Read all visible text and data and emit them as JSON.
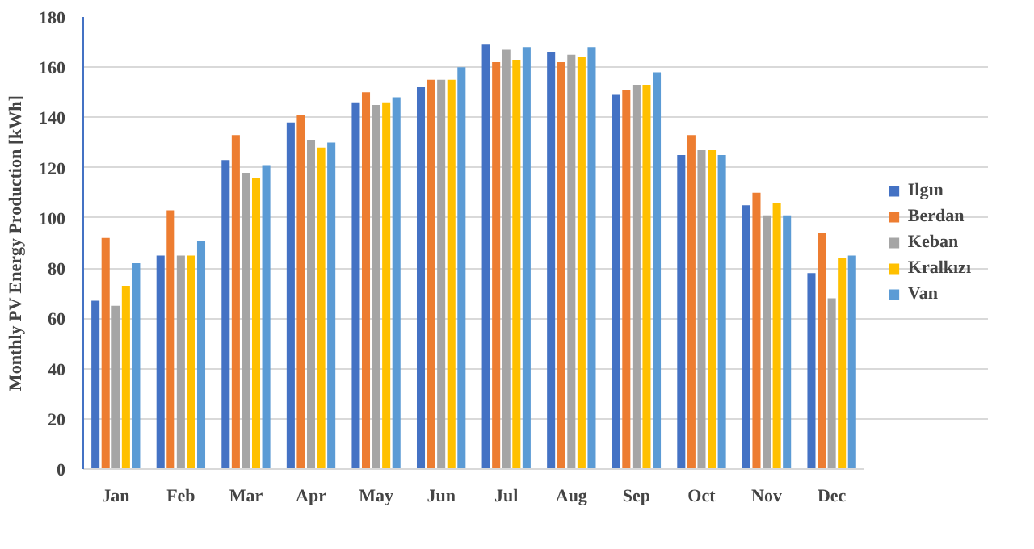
{
  "chart_data": {
    "type": "bar",
    "ylabel": "Monthly PV Energy Production [kWh]",
    "categories": [
      "Jan",
      "Feb",
      "Mar",
      "Apr",
      "May",
      "Jun",
      "Jul",
      "Aug",
      "Sep",
      "Oct",
      "Nov",
      "Dec"
    ],
    "series": [
      {
        "name": "Ilgın",
        "color": "#4472c4",
        "values": [
          67,
          85,
          123,
          138,
          146,
          152,
          169,
          166,
          149,
          125,
          105,
          78
        ]
      },
      {
        "name": "Berdan",
        "color": "#ed7d31",
        "values": [
          92,
          103,
          133,
          141,
          150,
          155,
          162,
          162,
          151,
          133,
          110,
          94
        ]
      },
      {
        "name": "Keban",
        "color": "#a5a5a5",
        "values": [
          65,
          85,
          118,
          131,
          145,
          155,
          167,
          165,
          153,
          127,
          101,
          68
        ]
      },
      {
        "name": "Kralkızı",
        "color": "#ffc000",
        "values": [
          73,
          85,
          116,
          128,
          146,
          155,
          163,
          164,
          153,
          127,
          106,
          84
        ]
      },
      {
        "name": "Van",
        "color": "#5b9bd5",
        "values": [
          82,
          91,
          121,
          130,
          148,
          160,
          168,
          168,
          158,
          125,
          101,
          85
        ]
      }
    ],
    "ylim": [
      0,
      180
    ],
    "yticks": [
      0,
      20,
      40,
      60,
      80,
      100,
      120,
      140,
      160,
      180
    ],
    "grid": "y",
    "legend": "right"
  }
}
